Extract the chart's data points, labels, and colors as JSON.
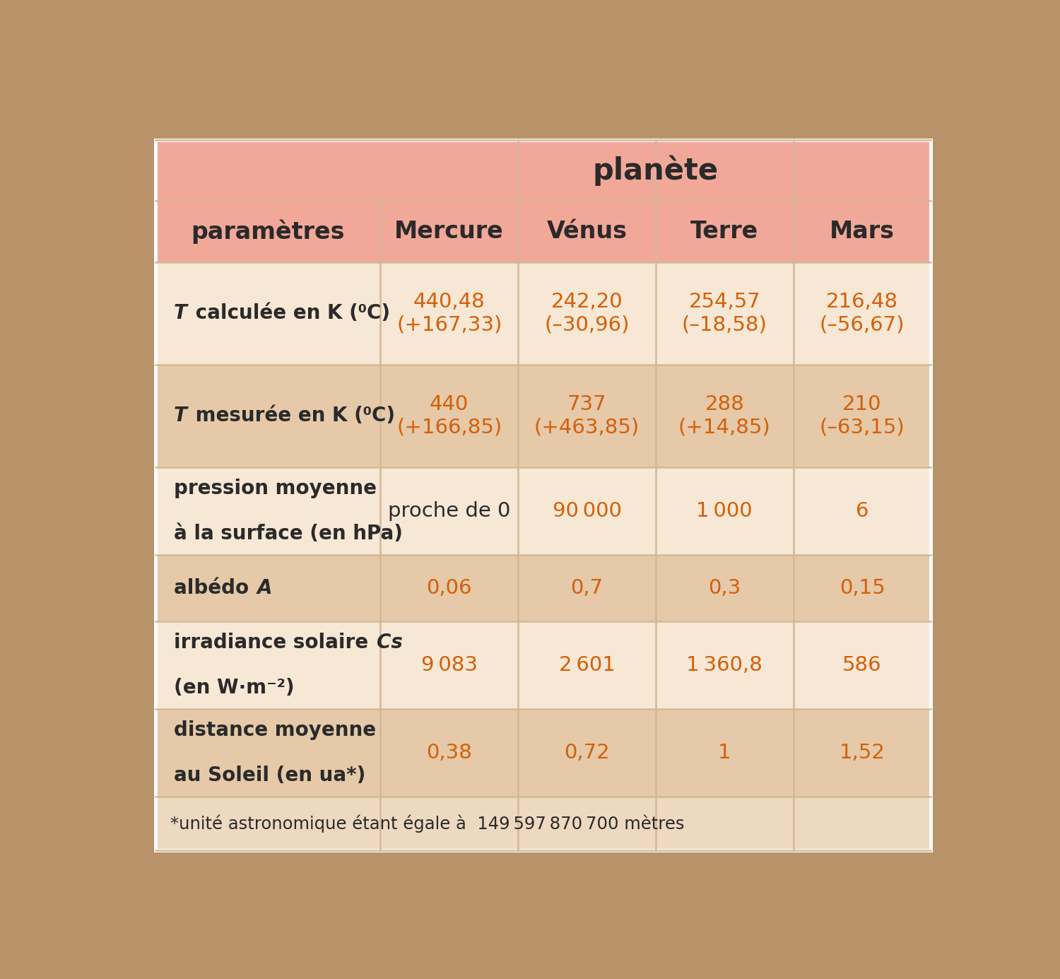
{
  "title": "planète",
  "col_header_label": "paramètres",
  "planets": [
    "Mercure",
    "Vénus",
    "Terre",
    "Mars"
  ],
  "rows": [
    {
      "label_parts": [
        [
          "italic",
          "T"
        ],
        [
          "normal",
          " calculée en K (⁰C)"
        ]
      ],
      "values": [
        "440,48\n(+167,33)",
        "242,20\n(–30,96)",
        "254,57\n(–18,58)",
        "216,48\n(–56,67)"
      ],
      "value_color": "orange"
    },
    {
      "label_parts": [
        [
          "italic",
          "T"
        ],
        [
          "normal",
          " mesurée en K (⁰C)"
        ]
      ],
      "values": [
        "440\n(+166,85)",
        "737\n(+463,85)",
        "288\n(+14,85)",
        "210\n(–63,15)"
      ],
      "value_color": "orange"
    },
    {
      "label_parts": [
        [
          "normal",
          "pression moyenne\nà la surface (en hPa)"
        ]
      ],
      "values": [
        "proche de 0",
        "90 000",
        "1 000",
        "6"
      ],
      "value_color": "mixed"
    },
    {
      "label_parts": [
        [
          "normal",
          "albédo "
        ],
        [
          "italic",
          "A"
        ]
      ],
      "values": [
        "0,06",
        "0,7",
        "0,3",
        "0,15"
      ],
      "value_color": "orange"
    },
    {
      "label_parts": [
        [
          "normal",
          "irradiance solaire "
        ],
        [
          "italic",
          "Cs"
        ],
        [
          "normal",
          "\n(en W·m⁻²)"
        ]
      ],
      "values": [
        "9 083",
        "2 601",
        "1 360,8",
        "586"
      ],
      "value_color": "orange"
    },
    {
      "label_parts": [
        [
          "normal",
          "distance moyenne\nau Soleil (en ua*)"
        ]
      ],
      "values": [
        "0,38",
        "0,72",
        "1",
        "1,52"
      ],
      "value_color": "orange"
    }
  ],
  "footnote": "*unité astronomique étant égale à  149 597 870 700 mètres",
  "colors": {
    "header_pink": "#F2A898",
    "row_light": "#F7E8D5",
    "row_dark": "#E5C9A8",
    "footnote_bg": "#EDD9C0",
    "border_line": "#D4B896",
    "text_dark": "#2A2A2A",
    "text_orange": "#D4600A",
    "outer_bg": "#B8936A"
  }
}
